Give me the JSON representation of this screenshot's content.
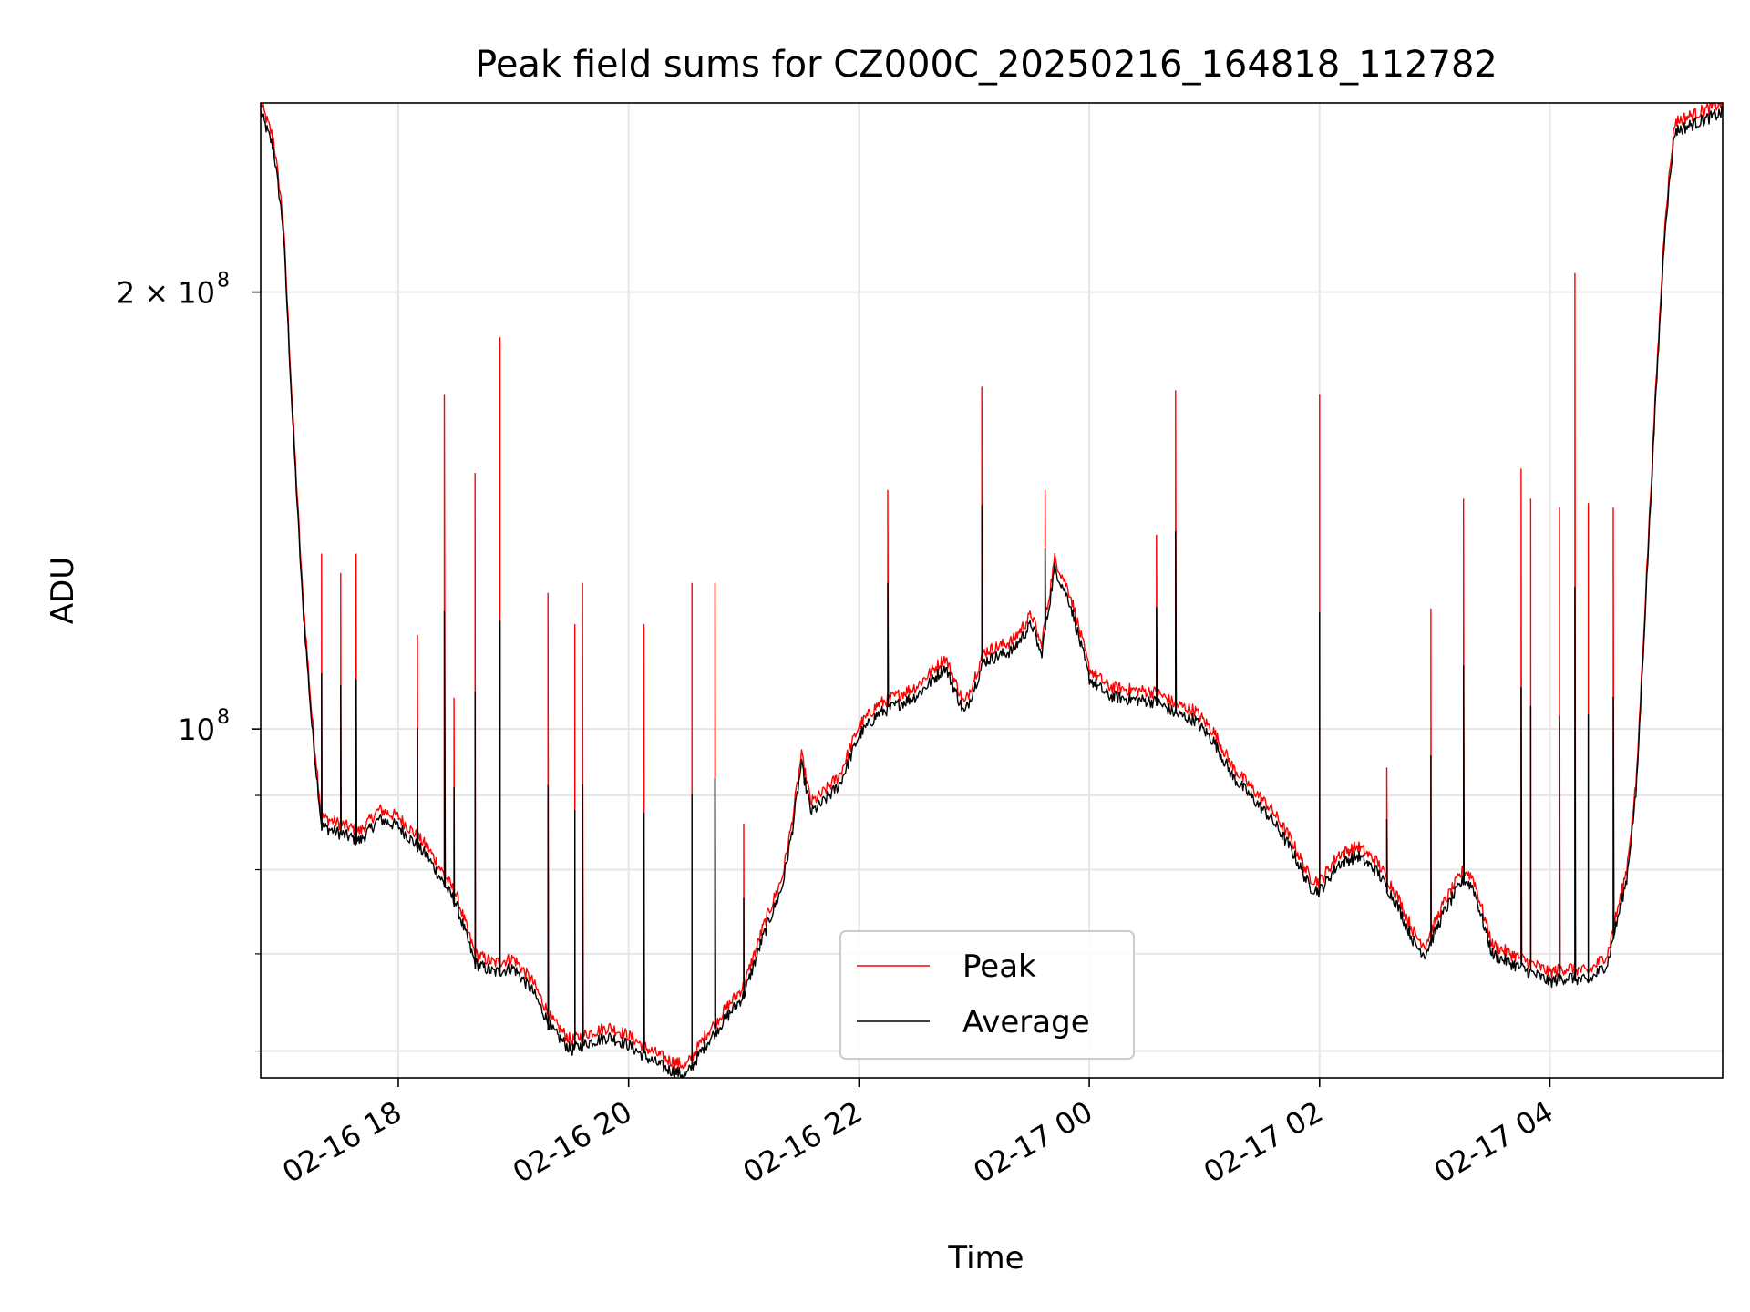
{
  "chart_data": {
    "type": "line",
    "title": "Peak field sums for CZ000C_20250216_164818_112782",
    "xlabel": "Time",
    "ylabel": "ADU",
    "x_range": [
      "2025-02-16T16:48:18",
      "2025-02-17T05:30:00"
    ],
    "ylim": [
      57500000,
      270000000
    ],
    "yscale": "log",
    "x_ticks": [
      {
        "t": "2025-02-16T18:00",
        "label": "02-16 18"
      },
      {
        "t": "2025-02-16T20:00",
        "label": "02-16 20"
      },
      {
        "t": "2025-02-16T22:00",
        "label": "02-16 22"
      },
      {
        "t": "2025-02-17T00:00",
        "label": "02-17 00"
      },
      {
        "t": "2025-02-17T02:00",
        "label": "02-17 02"
      },
      {
        "t": "2025-02-17T04:00",
        "label": "02-17 04"
      }
    ],
    "y_major_ticks": [
      {
        "value": 100000000,
        "base": "10",
        "exp": "8"
      },
      {
        "value": 200000000,
        "base": "2 × 10",
        "exp": "8"
      }
    ],
    "y_minor_ticks": [
      60000000,
      70000000,
      80000000,
      90000000
    ],
    "grid": true,
    "legend": {
      "position": "bottom-center"
    },
    "series_colors": {
      "peak": "#ff0000",
      "average": "#000000"
    },
    "series": [
      {
        "name": "Peak",
        "color": "#ff0000",
        "base_points": [
          [
            "2025-02-16T16:48:18",
            270000000
          ],
          [
            "2025-02-16T16:55",
            255000000
          ],
          [
            "2025-02-16T17:00",
            225000000
          ],
          [
            "2025-02-16T17:05",
            165000000
          ],
          [
            "2025-02-16T17:10",
            125000000
          ],
          [
            "2025-02-16T17:15",
            102000000
          ],
          [
            "2025-02-16T17:20",
            87000000
          ],
          [
            "2025-02-16T17:30",
            86000000
          ],
          [
            "2025-02-16T17:40",
            85000000
          ],
          [
            "2025-02-16T17:50",
            88000000
          ],
          [
            "2025-02-16T18:00",
            87000000
          ],
          [
            "2025-02-16T18:15",
            83000000
          ],
          [
            "2025-02-16T18:30",
            77000000
          ],
          [
            "2025-02-16T18:40",
            70000000
          ],
          [
            "2025-02-16T18:50",
            69000000
          ],
          [
            "2025-02-16T19:00",
            69500000
          ],
          [
            "2025-02-16T19:10",
            67000000
          ],
          [
            "2025-02-16T19:20",
            63000000
          ],
          [
            "2025-02-16T19:30",
            61000000
          ],
          [
            "2025-02-16T19:40",
            61800000
          ],
          [
            "2025-02-16T19:50",
            62300000
          ],
          [
            "2025-02-16T20:00",
            61500000
          ],
          [
            "2025-02-16T20:10",
            60200000
          ],
          [
            "2025-02-16T20:20",
            59200000
          ],
          [
            "2025-02-16T20:30",
            58600000
          ],
          [
            "2025-02-16T20:40",
            61500000
          ],
          [
            "2025-02-16T20:50",
            64000000
          ],
          [
            "2025-02-16T21:00",
            66500000
          ],
          [
            "2025-02-16T21:10",
            73000000
          ],
          [
            "2025-02-16T21:20",
            79000000
          ],
          [
            "2025-02-16T21:25",
            86000000
          ],
          [
            "2025-02-16T21:30",
            96000000
          ],
          [
            "2025-02-16T21:35",
            89000000
          ],
          [
            "2025-02-16T21:40",
            90000000
          ],
          [
            "2025-02-16T21:50",
            93000000
          ],
          [
            "2025-02-16T22:00",
            100500000
          ],
          [
            "2025-02-16T22:10",
            104000000
          ],
          [
            "2025-02-16T22:30",
            107000000
          ],
          [
            "2025-02-16T22:45",
            112000000
          ],
          [
            "2025-02-16T22:55",
            104000000
          ],
          [
            "2025-02-16T23:05",
            113000000
          ],
          [
            "2025-02-16T23:20",
            115000000
          ],
          [
            "2025-02-16T23:30",
            120000000
          ],
          [
            "2025-02-16T23:35",
            114000000
          ],
          [
            "2025-02-16T23:42",
            131000000
          ],
          [
            "2025-02-16T23:50",
            124000000
          ],
          [
            "2025-02-17T00:00",
            110000000
          ],
          [
            "2025-02-17T00:10",
            107000000
          ],
          [
            "2025-02-17T00:20",
            106500000
          ],
          [
            "2025-02-17T00:35",
            106000000
          ],
          [
            "2025-02-17T00:45",
            104000000
          ],
          [
            "2025-02-17T00:55",
            103000000
          ],
          [
            "2025-02-17T01:05",
            99500000
          ],
          [
            "2025-02-17T01:15",
            94000000
          ],
          [
            "2025-02-17T01:25",
            91000000
          ],
          [
            "2025-02-17T01:35",
            88000000
          ],
          [
            "2025-02-17T01:45",
            84000000
          ],
          [
            "2025-02-17T01:55",
            79000000
          ],
          [
            "2025-02-17T02:00",
            78500000
          ],
          [
            "2025-02-17T02:10",
            82000000
          ],
          [
            "2025-02-17T02:20",
            83000000
          ],
          [
            "2025-02-17T02:30",
            81000000
          ],
          [
            "2025-02-17T02:40",
            77000000
          ],
          [
            "2025-02-17T02:50",
            72000000
          ],
          [
            "2025-02-17T02:55",
            71000000
          ],
          [
            "2025-02-17T03:05",
            76000000
          ],
          [
            "2025-02-17T03:15",
            80000000
          ],
          [
            "2025-02-17T03:20",
            79000000
          ],
          [
            "2025-02-17T03:30",
            71000000
          ],
          [
            "2025-02-17T03:40",
            70000000
          ],
          [
            "2025-02-17T03:50",
            69000000
          ],
          [
            "2025-02-17T04:00",
            68000000
          ],
          [
            "2025-02-17T04:10",
            68500000
          ],
          [
            "2025-02-17T04:20",
            68000000
          ],
          [
            "2025-02-17T04:30",
            70000000
          ],
          [
            "2025-02-17T04:40",
            80000000
          ],
          [
            "2025-02-17T04:45",
            92000000
          ],
          [
            "2025-02-17T04:50",
            125000000
          ],
          [
            "2025-02-17T04:55",
            170000000
          ],
          [
            "2025-02-17T05:00",
            225000000
          ],
          [
            "2025-02-17T05:05",
            262000000
          ],
          [
            "2025-02-17T05:30",
            270000000
          ]
        ],
        "spikes": [
          [
            "2025-02-16T17:20",
            132000000
          ],
          [
            "2025-02-16T17:30",
            128000000
          ],
          [
            "2025-02-16T17:38",
            132000000
          ],
          [
            "2025-02-16T18:10",
            116000000
          ],
          [
            "2025-02-16T18:24",
            170000000
          ],
          [
            "2025-02-16T18:29",
            105000000
          ],
          [
            "2025-02-16T18:40",
            150000000
          ],
          [
            "2025-02-16T18:53",
            186000000
          ],
          [
            "2025-02-16T19:18",
            124000000
          ],
          [
            "2025-02-16T19:32",
            118000000
          ],
          [
            "2025-02-16T19:36",
            126000000
          ],
          [
            "2025-02-16T20:08",
            118000000
          ],
          [
            "2025-02-16T20:33",
            126000000
          ],
          [
            "2025-02-16T20:45",
            126000000
          ],
          [
            "2025-02-16T21:00",
            86000000
          ],
          [
            "2025-02-16T22:15",
            146000000
          ],
          [
            "2025-02-16T23:04",
            172000000
          ],
          [
            "2025-02-16T23:37",
            146000000
          ],
          [
            "2025-02-17T00:35",
            136000000
          ],
          [
            "2025-02-17T00:45",
            171000000
          ],
          [
            "2025-02-17T02:00",
            170000000
          ],
          [
            "2025-02-17T02:35",
            94000000
          ],
          [
            "2025-02-17T02:58",
            121000000
          ],
          [
            "2025-02-17T03:15",
            144000000
          ],
          [
            "2025-02-17T03:45",
            151000000
          ],
          [
            "2025-02-17T03:50",
            144000000
          ],
          [
            "2025-02-17T04:05",
            142000000
          ],
          [
            "2025-02-17T04:13",
            206000000
          ],
          [
            "2025-02-17T04:20",
            143000000
          ],
          [
            "2025-02-17T04:33",
            142000000
          ]
        ]
      },
      {
        "name": "Average",
        "color": "#000000",
        "offset_fraction": -0.015
      }
    ]
  }
}
